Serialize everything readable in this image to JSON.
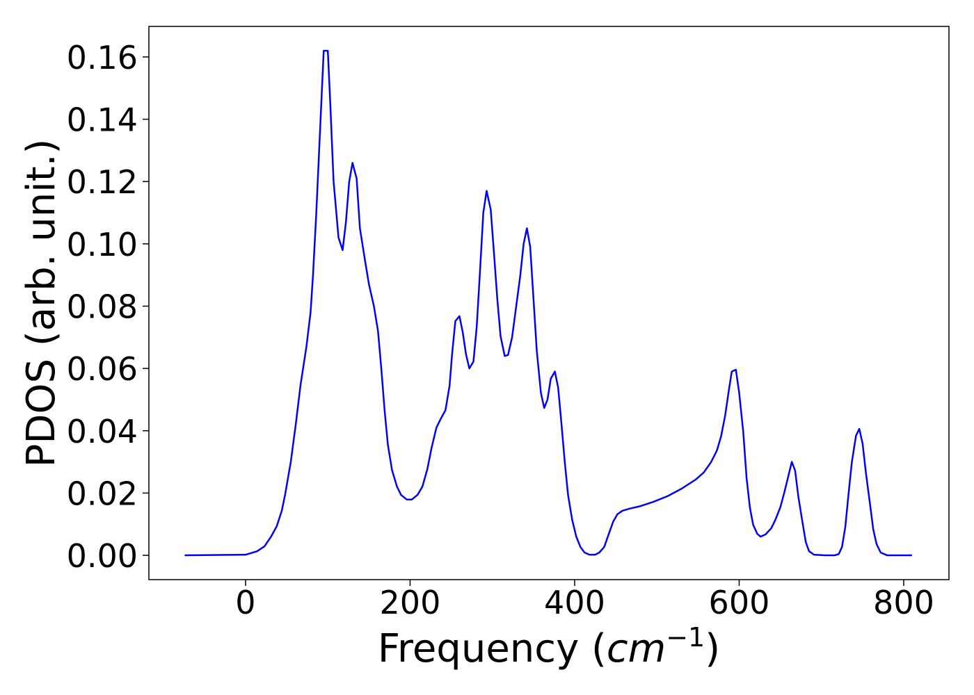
{
  "chart_data": {
    "type": "line",
    "xlabel": [
      "Frequency (",
      "cm",
      "−1",
      ")"
    ],
    "ylabel": "PDOS (arb. unit.)",
    "xlim": [
      -117.5,
      855
    ],
    "ylim": [
      -0.0078,
      0.1698
    ],
    "xticks": [
      0,
      200,
      400,
      600,
      800
    ],
    "yticks": [
      {
        "value": 0,
        "label": "0.00"
      },
      {
        "value": 0.02,
        "label": "0.02"
      },
      {
        "value": 0.04,
        "label": "0.04"
      },
      {
        "value": 0.06,
        "label": "0.06"
      },
      {
        "value": 0.08,
        "label": "0.08"
      },
      {
        "value": 0.1,
        "label": "0.10"
      },
      {
        "value": 0.12,
        "label": "0.12"
      },
      {
        "value": 0.14,
        "label": "0.14"
      },
      {
        "value": 0.16,
        "label": "0.16"
      }
    ],
    "grid": false,
    "series": [
      {
        "color": "#0000ff",
        "x": [
          -74,
          0,
          14,
          23,
          31,
          38,
          44,
          48,
          55,
          61,
          67,
          74,
          79,
          82,
          86,
          91,
          95,
          100,
          103,
          107,
          113,
          118,
          122,
          126,
          130,
          135,
          139,
          145,
          150,
          156,
          161,
          165,
          169,
          173,
          178,
          184,
          189,
          196,
          202,
          209,
          215,
          221,
          226,
          232,
          237,
          243,
          248,
          251,
          255,
          260,
          264,
          268,
          272,
          277,
          281,
          285,
          289,
          293,
          298,
          302,
          306,
          310,
          315,
          319,
          324,
          329,
          334,
          338,
          342,
          346,
          350,
          354,
          359,
          363,
          367,
          371,
          376,
          380,
          384,
          388,
          392,
          397,
          402,
          407,
          412,
          418,
          425,
          430,
          436,
          441,
          447,
          452,
          458,
          467,
          480,
          496,
          513,
          530,
          547,
          557,
          566,
          573,
          578,
          583,
          587,
          591,
          596,
          600,
          605,
          609,
          613,
          617,
          622,
          626,
          632,
          639,
          644,
          650,
          655,
          660,
          664,
          668,
          672,
          677,
          681,
          685,
          691,
          704,
          716,
          721,
          725,
          729,
          733,
          737,
          742,
          746,
          750,
          754,
          759,
          763,
          767,
          772,
          780,
          810
        ],
        "values": [
          0,
          0.0002,
          0.0013,
          0.0029,
          0.006,
          0.0094,
          0.0143,
          0.0194,
          0.03,
          0.042,
          0.055,
          0.067,
          0.078,
          0.09,
          0.11,
          0.139,
          0.162,
          0.162,
          0.145,
          0.12,
          0.102,
          0.098,
          0.107,
          0.12,
          0.126,
          0.121,
          0.105,
          0.095,
          0.087,
          0.08,
          0.072,
          0.06,
          0.0466,
          0.0355,
          0.0274,
          0.0221,
          0.0194,
          0.0179,
          0.0179,
          0.0194,
          0.0221,
          0.0277,
          0.0344,
          0.041,
          0.0437,
          0.0466,
          0.0545,
          0.0645,
          0.0752,
          0.0768,
          0.0716,
          0.0645,
          0.06,
          0.0622,
          0.0734,
          0.0913,
          0.11,
          0.117,
          0.111,
          0.0969,
          0.0823,
          0.0703,
          0.064,
          0.0643,
          0.07,
          0.08,
          0.09,
          0.1,
          0.105,
          0.099,
          0.0823,
          0.0656,
          0.0522,
          0.0473,
          0.05,
          0.0567,
          0.059,
          0.0538,
          0.0422,
          0.03,
          0.0194,
          0.0114,
          0.006,
          0.0027,
          0.0009,
          0.0002,
          0.0002,
          0.0009,
          0.0027,
          0.0065,
          0.0109,
          0.0132,
          0.0143,
          0.015,
          0.0158,
          0.0172,
          0.019,
          0.0214,
          0.0243,
          0.0266,
          0.03,
          0.0337,
          0.0382,
          0.0449,
          0.0522,
          0.059,
          0.0596,
          0.0522,
          0.0395,
          0.0248,
          0.0154,
          0.0098,
          0.0069,
          0.006,
          0.0067,
          0.0087,
          0.0114,
          0.0154,
          0.0203,
          0.0257,
          0.03,
          0.0272,
          0.0187,
          0.0105,
          0.0042,
          0.0013,
          0.0002,
          0,
          0,
          0.0004,
          0.0027,
          0.0091,
          0.0199,
          0.03,
          0.0384,
          0.0406,
          0.0359,
          0.0266,
          0.0165,
          0.0083,
          0.0036,
          0.0009,
          0,
          0
        ]
      }
    ]
  }
}
